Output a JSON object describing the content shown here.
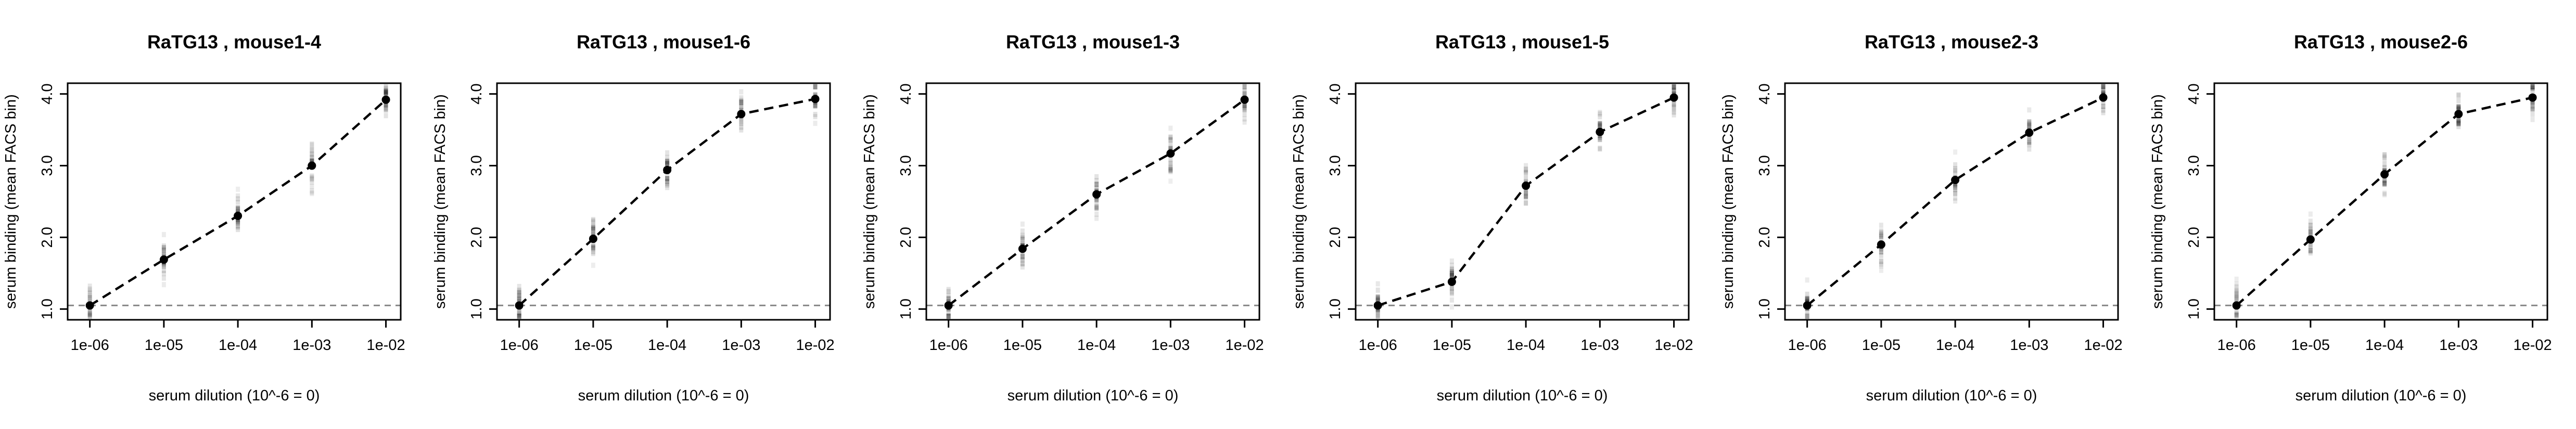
{
  "figure": {
    "background": "#ffffff",
    "panel_count": 6
  },
  "chart_data": [
    {
      "type": "line",
      "title": "RaTG13 , mouse1-4",
      "xlabel": "serum dilution (10^-6 = 0)",
      "ylabel": "serum binding (mean FACS bin)",
      "x": [
        -6,
        -5,
        -4,
        -3,
        -2
      ],
      "x_tick_labels": [
        "1e-06",
        "1e-05",
        "1e-04",
        "1e-03",
        "1e-02"
      ],
      "y_ticks": [
        1,
        2,
        3,
        4
      ],
      "y_tick_labels": [
        "1.0",
        "2.0",
        "3.0",
        "4.0"
      ],
      "xlim": [
        -6.3,
        -1.8
      ],
      "ylim": [
        0.85,
        4.15
      ],
      "series": [
        {
          "values": [
            1.05,
            1.69,
            2.3,
            3.0,
            3.92
          ],
          "style": "dashed",
          "color": "#000000"
        }
      ],
      "baseline": {
        "y": 1.05,
        "style": "dashed",
        "color": "#888888"
      },
      "raw_distributions": true,
      "grid": false,
      "legend": "none"
    },
    {
      "type": "line",
      "title": "RaTG13 , mouse1-6",
      "xlabel": "serum dilution (10^-6 = 0)",
      "ylabel": "serum binding (mean FACS bin)",
      "x": [
        -6,
        -5,
        -4,
        -3,
        -2
      ],
      "x_tick_labels": [
        "1e-06",
        "1e-05",
        "1e-04",
        "1e-03",
        "1e-02"
      ],
      "y_ticks": [
        1,
        2,
        3,
        4
      ],
      "y_tick_labels": [
        "1.0",
        "2.0",
        "3.0",
        "4.0"
      ],
      "xlim": [
        -6.3,
        -1.8
      ],
      "ylim": [
        0.85,
        4.15
      ],
      "series": [
        {
          "values": [
            1.05,
            1.98,
            2.94,
            3.72,
            3.93
          ],
          "style": "dashed",
          "color": "#000000"
        }
      ],
      "baseline": {
        "y": 1.05,
        "style": "dashed",
        "color": "#888888"
      },
      "raw_distributions": true,
      "grid": false,
      "legend": "none"
    },
    {
      "type": "line",
      "title": "RaTG13 , mouse1-3",
      "xlabel": "serum dilution (10^-6 = 0)",
      "ylabel": "serum binding (mean FACS bin)",
      "x": [
        -6,
        -5,
        -4,
        -3,
        -2
      ],
      "x_tick_labels": [
        "1e-06",
        "1e-05",
        "1e-04",
        "1e-03",
        "1e-02"
      ],
      "y_ticks": [
        1,
        2,
        3,
        4
      ],
      "y_tick_labels": [
        "1.0",
        "2.0",
        "3.0",
        "4.0"
      ],
      "xlim": [
        -6.3,
        -1.8
      ],
      "ylim": [
        0.85,
        4.15
      ],
      "series": [
        {
          "values": [
            1.05,
            1.84,
            2.6,
            3.17,
            3.92
          ],
          "style": "dashed",
          "color": "#000000"
        }
      ],
      "baseline": {
        "y": 1.05,
        "style": "dashed",
        "color": "#888888"
      },
      "raw_distributions": true,
      "grid": false,
      "legend": "none"
    },
    {
      "type": "line",
      "title": "RaTG13 , mouse1-5",
      "xlabel": "serum dilution (10^-6 = 0)",
      "ylabel": "serum binding (mean FACS bin)",
      "x": [
        -6,
        -5,
        -4,
        -3,
        -2
      ],
      "x_tick_labels": [
        "1e-06",
        "1e-05",
        "1e-04",
        "1e-03",
        "1e-02"
      ],
      "y_ticks": [
        1,
        2,
        3,
        4
      ],
      "y_tick_labels": [
        "1.0",
        "2.0",
        "3.0",
        "4.0"
      ],
      "xlim": [
        -6.3,
        -1.8
      ],
      "ylim": [
        0.85,
        4.15
      ],
      "series": [
        {
          "values": [
            1.05,
            1.38,
            2.72,
            3.47,
            3.95
          ],
          "style": "dashed",
          "color": "#000000"
        }
      ],
      "baseline": {
        "y": 1.05,
        "style": "dashed",
        "color": "#888888"
      },
      "raw_distributions": true,
      "grid": false,
      "legend": "none"
    },
    {
      "type": "line",
      "title": "RaTG13 , mouse2-3",
      "xlabel": "serum dilution (10^-6 = 0)",
      "ylabel": "serum binding (mean FACS bin)",
      "x": [
        -6,
        -5,
        -4,
        -3,
        -2
      ],
      "x_tick_labels": [
        "1e-06",
        "1e-05",
        "1e-04",
        "1e-03",
        "1e-02"
      ],
      "y_ticks": [
        1,
        2,
        3,
        4
      ],
      "y_tick_labels": [
        "1.0",
        "2.0",
        "3.0",
        "4.0"
      ],
      "xlim": [
        -6.3,
        -1.8
      ],
      "ylim": [
        0.85,
        4.15
      ],
      "series": [
        {
          "values": [
            1.05,
            1.9,
            2.8,
            3.46,
            3.95
          ],
          "style": "dashed",
          "color": "#000000"
        }
      ],
      "baseline": {
        "y": 1.05,
        "style": "dashed",
        "color": "#888888"
      },
      "raw_distributions": true,
      "grid": false,
      "legend": "none"
    },
    {
      "type": "line",
      "title": "RaTG13 , mouse2-6",
      "xlabel": "serum dilution (10^-6 = 0)",
      "ylabel": "serum binding (mean FACS bin)",
      "x": [
        -6,
        -5,
        -4,
        -3,
        -2
      ],
      "x_tick_labels": [
        "1e-06",
        "1e-05",
        "1e-04",
        "1e-03",
        "1e-02"
      ],
      "y_ticks": [
        1,
        2,
        3,
        4
      ],
      "y_tick_labels": [
        "1.0",
        "2.0",
        "3.0",
        "4.0"
      ],
      "xlim": [
        -6.3,
        -1.8
      ],
      "ylim": [
        0.85,
        4.15
      ],
      "series": [
        {
          "values": [
            1.05,
            1.97,
            2.88,
            3.72,
            3.95
          ],
          "style": "dashed",
          "color": "#000000"
        }
      ],
      "baseline": {
        "y": 1.05,
        "style": "dashed",
        "color": "#888888"
      },
      "raw_distributions": true,
      "grid": false,
      "legend": "none"
    }
  ]
}
